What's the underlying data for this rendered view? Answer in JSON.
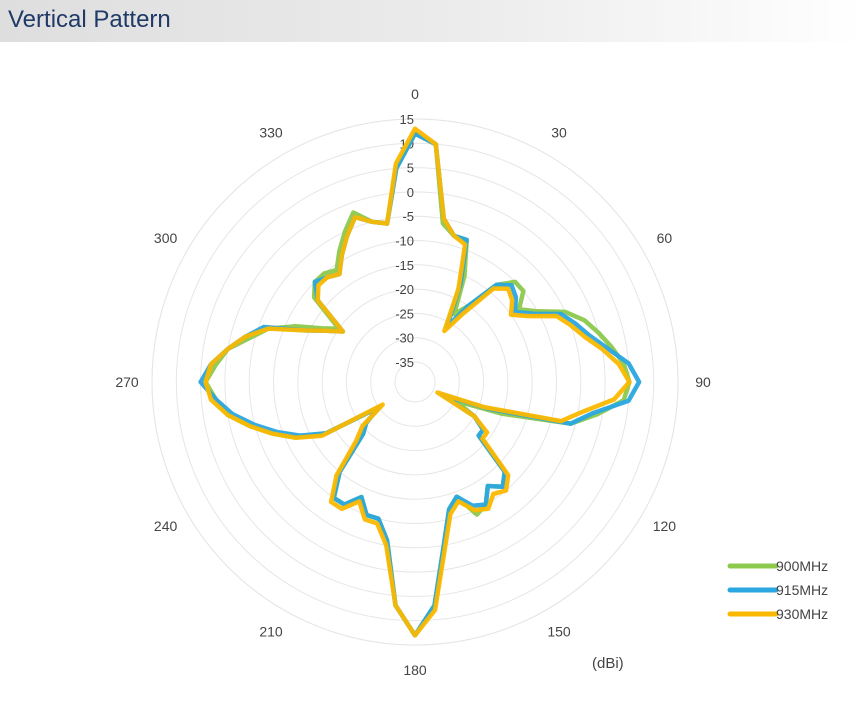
{
  "header": {
    "title": "Vertical Pattern"
  },
  "chart_data": {
    "type": "polar-line",
    "title": "",
    "unit_label": "(dBi)",
    "r_ticks": [
      15,
      10,
      5,
      0,
      -5,
      -10,
      -15,
      -20,
      -25,
      -30,
      -35
    ],
    "r_range": [
      -35,
      15
    ],
    "angle_ticks": [
      "0",
      "30",
      "60",
      "90",
      "120",
      "150",
      "180",
      "210",
      "240",
      "270",
      "300",
      "330"
    ],
    "angle_direction": "clockwise",
    "zero_location": "top",
    "grid": true,
    "legend_position": "bottom-right",
    "angles": [
      0,
      5,
      10,
      15,
      20,
      25,
      30,
      35,
      40,
      45,
      50,
      55,
      60,
      65,
      70,
      75,
      80,
      85,
      90,
      95,
      100,
      105,
      110,
      115,
      120,
      125,
      130,
      135,
      140,
      145,
      150,
      155,
      160,
      165,
      170,
      175,
      180,
      185,
      190,
      195,
      200,
      205,
      210,
      215,
      220,
      225,
      230,
      235,
      240,
      245,
      250,
      255,
      260,
      265,
      270,
      275,
      280,
      285,
      290,
      295,
      300,
      305,
      310,
      315,
      320,
      325,
      330,
      335,
      340,
      345,
      350,
      355
    ],
    "series": [
      {
        "name": "900MHz",
        "color": "#8cc94d",
        "values": [
          12,
          10,
          -6,
          -8,
          -8,
          -15,
          -23,
          -20,
          -13,
          -10,
          -10,
          -13,
          -10,
          -5,
          -2,
          0,
          2,
          4,
          5,
          4,
          -1,
          -6,
          -20,
          -30,
          -25,
          -22,
          -22,
          -13,
          -11,
          -13,
          -10,
          -9,
          -14,
          -12,
          -5,
          7,
          13,
          7,
          -6,
          -10,
          -10,
          -13,
          -10,
          -10,
          -15,
          -24,
          -26,
          -30,
          -18,
          -12,
          -8,
          -4,
          0,
          2,
          4,
          2,
          0,
          -4,
          -7,
          -12,
          -17,
          -20,
          -12,
          -10,
          -10,
          -11,
          -8,
          -5,
          -2,
          -5,
          -6,
          5
        ]
      },
      {
        "name": "915MHz",
        "color": "#2aa6e0",
        "values": [
          12,
          10,
          -5,
          -8,
          -8,
          -17,
          -26,
          -20,
          -13,
          -11,
          -12,
          -14,
          -11,
          -6,
          -4,
          -2,
          1,
          5,
          7,
          5,
          -2,
          -6,
          -23,
          -33,
          -25,
          -22,
          -22,
          -13,
          -11,
          -13,
          -10,
          -11,
          -14,
          -12,
          -5,
          7,
          13,
          7,
          -6,
          -10,
          -10,
          -13,
          -10,
          -10,
          -15,
          -24,
          -26,
          -30,
          -18,
          -13,
          -9,
          -5,
          -1,
          2,
          5,
          3,
          0,
          -3,
          -6,
          -14,
          -18,
          -21,
          -13,
          -10,
          -11,
          -12,
          -9,
          -6,
          -3,
          -5,
          -6,
          5
        ]
      },
      {
        "name": "930MHz",
        "color": "#fbb800",
        "values": [
          13,
          10,
          -5,
          -8,
          -9,
          -18,
          -27,
          -22,
          -14,
          -12,
          -13,
          -15,
          -12,
          -7,
          -5,
          -3,
          0,
          3,
          5,
          2,
          -4,
          -8,
          -24,
          -34,
          -25,
          -21,
          -21,
          -12,
          -10,
          -11,
          -9,
          -10,
          -13,
          -11,
          -4,
          8,
          13,
          7,
          -5,
          -9,
          -9,
          -12,
          -9,
          -9,
          -14,
          -22,
          -25,
          -31,
          -17,
          -12,
          -8,
          -4,
          0,
          3,
          4,
          3,
          0,
          -3,
          -7,
          -14,
          -18,
          -21,
          -13,
          -11,
          -11,
          -12,
          -9,
          -6,
          -3,
          -5,
          -6,
          6
        ]
      }
    ]
  }
}
